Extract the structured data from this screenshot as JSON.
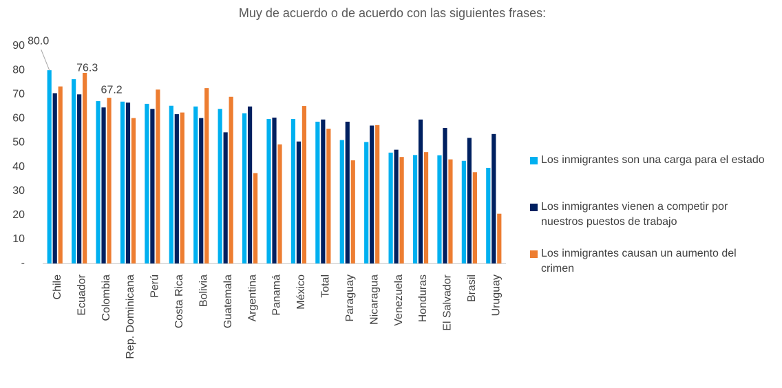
{
  "chart_data": {
    "type": "bar",
    "title": "Muy de acuerdo o de acuerdo con las siguientes frases:",
    "categories": [
      "Chile",
      "Ecuador",
      "Colombia",
      "Rep. Dominicana",
      "Perú",
      "Costa Rica",
      "Bolivia",
      "Guatemala",
      "Argentina",
      "Panamá",
      "México",
      "Total",
      "Paraguay",
      "Nicaragua",
      "Venezuela",
      "Honduras",
      "El Salvador",
      "Brasil",
      "Uruguay"
    ],
    "series": [
      {
        "name": "Los inmigrantes son una carga para el estado",
        "color": "#00b0f0",
        "values": [
          80.0,
          76.3,
          67.2,
          67.0,
          66.1,
          65.3,
          65.0,
          64.0,
          62.2,
          59.8,
          59.8,
          58.7,
          51.1,
          50.3,
          45.9,
          44.9,
          44.8,
          42.5,
          39.6
        ],
        "value_labels": [
          "80.0",
          "76.3",
          "67.2",
          null,
          null,
          null,
          null,
          null,
          null,
          null,
          null,
          null,
          null,
          null,
          null,
          null,
          null,
          null,
          null
        ]
      },
      {
        "name": "Los inmigrantes vienen a competir por nuestros puestos de trabajo",
        "color": "#002060",
        "values": [
          70.5,
          70.0,
          64.6,
          66.6,
          64.0,
          61.8,
          60.2,
          54.3,
          65.0,
          60.4,
          50.5,
          59.6,
          58.7,
          57.1,
          47.1,
          59.6,
          56.1,
          52.0,
          53.6
        ]
      },
      {
        "name": "Los inmigrantes causan un aumento del crimen",
        "color": "#ed7d31",
        "values": [
          73.3,
          78.9,
          68.6,
          60.2,
          72.0,
          62.5,
          72.6,
          69.0,
          37.4,
          49.3,
          65.2,
          55.8,
          42.7,
          57.3,
          44.1,
          46.1,
          43.1,
          37.8,
          20.6
        ]
      }
    ],
    "ylim": [
      0,
      90
    ],
    "yticks": [
      {
        "value": 0,
        "label": "-"
      },
      10,
      20,
      30,
      40,
      50,
      60,
      70,
      80,
      90
    ],
    "legend": "right"
  }
}
